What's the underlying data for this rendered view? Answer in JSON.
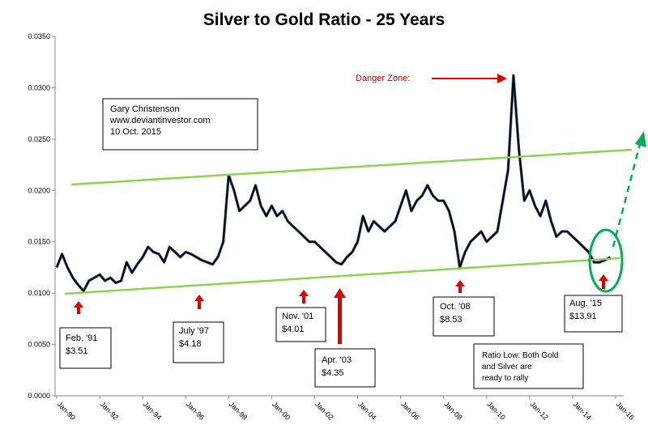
{
  "chart_data": {
    "type": "line",
    "title": "Silver to Gold Ratio - 25 Years",
    "x": [
      "Jan-90",
      "Apr-90",
      "Jul-90",
      "Oct-90",
      "Jan-91",
      "Apr-91",
      "Jul-91",
      "Oct-91",
      "Jan-92",
      "Apr-92",
      "Jul-92",
      "Oct-92",
      "Jan-93",
      "Apr-93",
      "Jul-93",
      "Oct-93",
      "Jan-94",
      "Apr-94",
      "Jul-94",
      "Oct-94",
      "Jan-95",
      "Apr-95",
      "Jul-95",
      "Oct-95",
      "Jan-96",
      "Apr-96",
      "Jul-96",
      "Oct-96",
      "Jan-97",
      "Apr-97",
      "Jul-97",
      "Oct-97",
      "Jan-98",
      "Apr-98",
      "Jul-98",
      "Oct-98",
      "Jan-99",
      "Apr-99",
      "Jul-99",
      "Oct-99",
      "Jan-00",
      "Apr-00",
      "Jul-00",
      "Oct-00",
      "Jan-01",
      "Apr-01",
      "Jul-01",
      "Oct-01",
      "Jan-02",
      "Apr-02",
      "Jul-02",
      "Oct-02",
      "Jan-03",
      "Apr-03",
      "Jul-03",
      "Oct-03",
      "Jan-04",
      "Apr-04",
      "Jul-04",
      "Oct-04",
      "Jan-05",
      "Apr-05",
      "Jul-05",
      "Oct-05",
      "Jan-06",
      "Apr-06",
      "Jul-06",
      "Oct-06",
      "Jan-07",
      "Apr-07",
      "Jul-07",
      "Oct-07",
      "Jan-08",
      "Apr-08",
      "Jul-08",
      "Oct-08",
      "Jan-09",
      "Apr-09",
      "Jul-09",
      "Oct-09",
      "Jan-10",
      "Apr-10",
      "Jul-10",
      "Oct-10",
      "Jan-11",
      "Apr-11",
      "Jul-11",
      "Oct-11",
      "Jan-12",
      "Apr-12",
      "Jul-12",
      "Oct-12",
      "Jan-13",
      "Apr-13",
      "Jul-13",
      "Oct-13",
      "Jan-14",
      "Apr-14",
      "Jul-14",
      "Oct-14",
      "Jan-15",
      "Apr-15",
      "Jul-15",
      "Oct-15"
    ],
    "series": [
      {
        "name": "Silver/Gold",
        "color": "#000000",
        "values": [
          0.0125,
          0.0138,
          0.0125,
          0.0115,
          0.0108,
          0.0102,
          0.0112,
          0.0115,
          0.0118,
          0.0112,
          0.0115,
          0.011,
          0.0112,
          0.013,
          0.012,
          0.0128,
          0.0135,
          0.0145,
          0.014,
          0.0138,
          0.013,
          0.0145,
          0.014,
          0.0135,
          0.014,
          0.0138,
          0.0135,
          0.0132,
          0.013,
          0.0128,
          0.0135,
          0.015,
          0.0215,
          0.02,
          0.018,
          0.0185,
          0.019,
          0.0205,
          0.0185,
          0.0175,
          0.0185,
          0.0175,
          0.018,
          0.017,
          0.0165,
          0.016,
          0.0155,
          0.015,
          0.015,
          0.0145,
          0.014,
          0.0135,
          0.013,
          0.0128,
          0.0135,
          0.014,
          0.015,
          0.0175,
          0.016,
          0.017,
          0.0165,
          0.016,
          0.0165,
          0.017,
          0.0185,
          0.02,
          0.018,
          0.019,
          0.0195,
          0.0205,
          0.0195,
          0.019,
          0.019,
          0.018,
          0.016,
          0.0125,
          0.014,
          0.015,
          0.0155,
          0.016,
          0.015,
          0.0155,
          0.016,
          0.019,
          0.022,
          0.0312,
          0.024,
          0.019,
          0.02,
          0.0185,
          0.0175,
          0.019,
          0.017,
          0.0155,
          0.016,
          0.016,
          0.0155,
          0.015,
          0.0145,
          0.014,
          0.013,
          0.013,
          0.0132,
          0.0135
        ]
      }
    ],
    "xlim": [
      "Jan-90",
      "Jan-16"
    ],
    "xticks": [
      "Jan-90",
      "Jan-92",
      "Jan-94",
      "Jan-96",
      "Jan-98",
      "Jan-00",
      "Jan-02",
      "Jan-04",
      "Jan-06",
      "Jan-08",
      "Jan-10",
      "Jan-12",
      "Jan-14",
      "Jan-16"
    ],
    "ylim": [
      0,
      0.035
    ],
    "yticks": [
      {
        "value": 0,
        "label": "0.0000"
      },
      {
        "value": 0.005,
        "label": "0.0050"
      },
      {
        "value": 0.01,
        "label": "0.0100"
      },
      {
        "value": 0.015,
        "label": "0.0150"
      },
      {
        "value": 0.02,
        "label": "0.0200"
      },
      {
        "value": 0.025,
        "label": "0.0250"
      },
      {
        "value": 0.03,
        "label": "0.0300"
      },
      {
        "value": 0.035,
        "label": "0.0350"
      }
    ],
    "grid": false,
    "annotations": {
      "author": [
        "Gary Christenson",
        "www.deviantinvestor.com",
        "10 Oct. 2015"
      ],
      "danger": "Danger Zone:",
      "lows": [
        [
          "Feb. '91",
          "$3.51"
        ],
        [
          "July '97",
          "$4.18"
        ],
        [
          "Nov. '01",
          "$4.01"
        ],
        [
          "Apr. '03",
          "$4.35"
        ],
        [
          "Oct. '08",
          "$8.53"
        ],
        [
          "Aug. '15",
          "$13.91"
        ]
      ],
      "note": [
        "Ratio Low: Both Gold",
        "and Silver  are",
        "ready to rally"
      ]
    }
  }
}
